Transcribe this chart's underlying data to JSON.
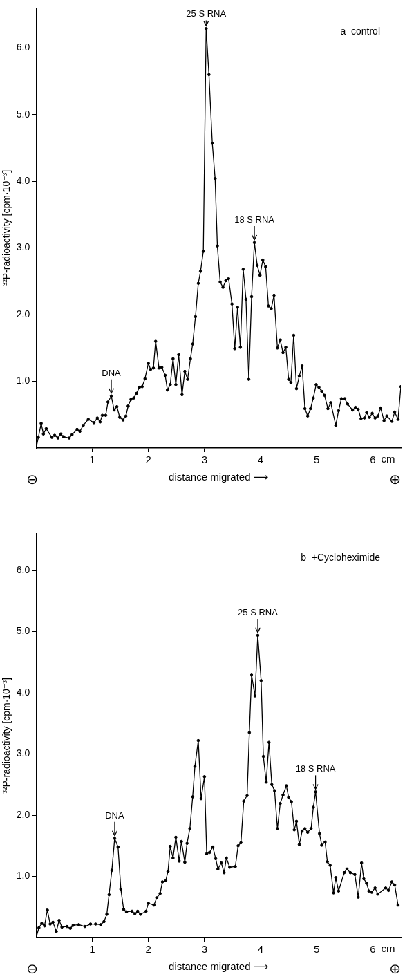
{
  "chart_data": [
    {
      "type": "line",
      "title": "a  control",
      "xlabel": "distance migrated ⟶",
      "ylabel": "³²P-radioactivity [cpm·10⁻³]",
      "x": [
        0,
        0.04,
        0.09,
        0.13,
        0.18,
        0.28,
        0.33,
        0.39,
        0.44,
        0.49,
        0.59,
        0.64,
        0.73,
        0.78,
        0.84,
        0.93,
        1.03,
        1.09,
        1.14,
        1.18,
        1.24,
        1.28,
        1.34,
        1.39,
        1.44,
        1.49,
        1.55,
        1.6,
        1.64,
        1.69,
        1.74,
        1.79,
        1.84,
        1.89,
        1.94,
        2.0,
        2.04,
        2.09,
        2.13,
        2.19,
        2.24,
        2.3,
        2.34,
        2.39,
        2.44,
        2.49,
        2.54,
        2.6,
        2.65,
        2.7,
        2.75,
        2.79,
        2.84,
        2.89,
        2.93,
        2.98,
        3.03,
        3.08,
        3.14,
        3.19,
        3.23,
        3.28,
        3.33,
        3.38,
        3.43,
        3.49,
        3.54,
        3.59,
        3.64,
        3.69,
        3.74,
        3.79,
        3.84,
        3.89,
        3.94,
        3.99,
        4.04,
        4.09,
        4.14,
        4.19,
        4.24,
        4.3,
        4.35,
        4.4,
        4.45,
        4.5,
        4.54,
        4.59,
        4.64,
        4.69,
        4.74,
        4.79,
        4.84,
        4.89,
        4.94,
        4.99,
        5.04,
        5.09,
        5.14,
        5.2,
        5.25,
        5.34,
        5.39,
        5.44,
        5.5,
        5.55,
        5.64,
        5.69,
        5.74,
        5.79,
        5.85,
        5.89,
        5.94,
        5.99,
        6.04,
        6.09,
        6.14,
        6.2,
        6.25,
        6.34,
        6.39,
        6.45,
        6.5
      ],
      "values": [
        0,
        0.16,
        0.37,
        0.21,
        0.29,
        0.16,
        0.19,
        0.15,
        0.21,
        0.17,
        0.15,
        0.2,
        0.28,
        0.25,
        0.34,
        0.43,
        0.38,
        0.45,
        0.39,
        0.49,
        0.49,
        0.69,
        0.78,
        0.57,
        0.62,
        0.46,
        0.42,
        0.48,
        0.63,
        0.73,
        0.75,
        0.82,
        0.91,
        0.92,
        1.04,
        1.27,
        1.18,
        1.2,
        1.6,
        1.2,
        1.21,
        1.09,
        0.87,
        0.95,
        1.34,
        0.95,
        1.4,
        0.8,
        1.15,
        1.03,
        1.34,
        1.56,
        1.97,
        2.47,
        2.65,
        2.95,
        6.29,
        5.6,
        4.57,
        4.04,
        3.03,
        2.49,
        2.41,
        2.51,
        2.54,
        2.16,
        1.49,
        2.11,
        1.51,
        2.68,
        2.23,
        1.03,
        2.27,
        3.08,
        2.74,
        2.59,
        2.82,
        2.72,
        2.13,
        2.09,
        2.29,
        1.5,
        1.62,
        1.43,
        1.51,
        1.03,
        0.98,
        1.69,
        0.89,
        1.08,
        1.23,
        0.59,
        0.48,
        0.59,
        0.75,
        0.95,
        0.91,
        0.85,
        0.79,
        0.59,
        0.68,
        0.34,
        0.56,
        0.74,
        0.74,
        0.66,
        0.57,
        0.61,
        0.58,
        0.44,
        0.45,
        0.53,
        0.46,
        0.52,
        0.45,
        0.48,
        0.6,
        0.41,
        0.48,
        0.4,
        0.54,
        0.43,
        0.92
      ],
      "color": "#000000",
      "marker": "circle",
      "grid": false,
      "legend": false,
      "xlim": [
        0,
        6.5
      ],
      "ylim": [
        0,
        6.6
      ],
      "xticks": [
        1,
        2,
        3,
        4,
        5,
        6
      ],
      "yticks": [
        {
          "value": 1,
          "label": "1.0"
        },
        {
          "value": 2,
          "label": "2.0"
        },
        {
          "value": 3,
          "label": "3.0"
        },
        {
          "value": 4,
          "label": "4.0"
        },
        {
          "value": 5,
          "label": "5.0"
        },
        {
          "value": 6,
          "label": "6.0"
        }
      ],
      "annotations": [
        {
          "text": "25 S RNA",
          "x": 3.03,
          "y": 6.29
        },
        {
          "text": "18 S RNA",
          "x": 3.89,
          "y": 3.08
        },
        {
          "text": "DNA",
          "x": 1.34,
          "y": 0.78
        },
        "cm",
        "⊖",
        "⊕"
      ]
    },
    {
      "type": "line",
      "title": "b  +Cycloheximide",
      "xlabel": "distance migrated ⟶",
      "ylabel": "³²P-radioactivity [cpm·10⁻³]",
      "x": [
        0,
        0.05,
        0.1,
        0.15,
        0.2,
        0.25,
        0.3,
        0.36,
        0.41,
        0.46,
        0.55,
        0.61,
        0.66,
        0.76,
        0.87,
        0.97,
        1.06,
        1.15,
        1.21,
        1.26,
        1.3,
        1.35,
        1.4,
        1.46,
        1.51,
        1.56,
        1.61,
        1.71,
        1.76,
        1.81,
        1.86,
        1.96,
        2.0,
        2.1,
        2.15,
        2.21,
        2.25,
        2.31,
        2.35,
        2.39,
        2.44,
        2.49,
        2.55,
        2.59,
        2.65,
        2.69,
        2.74,
        2.79,
        2.83,
        2.89,
        2.94,
        3.0,
        3.04,
        3.09,
        3.15,
        3.2,
        3.24,
        3.3,
        3.35,
        3.39,
        3.45,
        3.55,
        3.6,
        3.65,
        3.7,
        3.76,
        3.8,
        3.84,
        3.9,
        3.95,
        4.01,
        4.05,
        4.1,
        4.15,
        4.2,
        4.25,
        4.3,
        4.35,
        4.4,
        4.46,
        4.5,
        4.55,
        4.6,
        4.64,
        4.69,
        4.74,
        4.79,
        4.84,
        4.9,
        4.94,
        4.98,
        5.05,
        5.09,
        5.15,
        5.19,
        5.24,
        5.3,
        5.34,
        5.39,
        5.49,
        5.54,
        5.6,
        5.68,
        5.74,
        5.8,
        5.84,
        5.89,
        5.93,
        5.98,
        6.04,
        6.09,
        6.23,
        6.28,
        6.34,
        6.39,
        6.45
      ],
      "values": [
        0,
        0.16,
        0.23,
        0.19,
        0.45,
        0.22,
        0.25,
        0.1,
        0.28,
        0.17,
        0.18,
        0.15,
        0.2,
        0.21,
        0.18,
        0.22,
        0.22,
        0.21,
        0.26,
        0.38,
        0.7,
        1.1,
        1.62,
        1.48,
        0.79,
        0.46,
        0.42,
        0.43,
        0.39,
        0.43,
        0.38,
        0.43,
        0.56,
        0.53,
        0.65,
        0.72,
        0.91,
        0.93,
        1.08,
        1.49,
        1.3,
        1.64,
        1.25,
        1.57,
        1.23,
        1.54,
        1.78,
        2.3,
        2.8,
        3.22,
        2.27,
        2.63,
        1.37,
        1.39,
        1.48,
        1.29,
        1.12,
        1.22,
        1.06,
        1.3,
        1.15,
        1.16,
        1.5,
        1.55,
        2.23,
        2.32,
        3.35,
        4.29,
        3.95,
        4.94,
        4.2,
        2.96,
        2.54,
        3.19,
        2.5,
        2.4,
        1.78,
        2.19,
        2.33,
        2.48,
        2.29,
        2.22,
        1.76,
        1.9,
        1.52,
        1.74,
        1.78,
        1.72,
        1.78,
        2.13,
        2.38,
        1.7,
        1.51,
        1.56,
        1.24,
        1.18,
        0.73,
        0.98,
        0.76,
        1.06,
        1.12,
        1.06,
        1.03,
        0.66,
        1.22,
        0.96,
        0.89,
        0.76,
        0.74,
        0.81,
        0.71,
        0.81,
        0.77,
        0.91,
        0.86,
        0.53
      ],
      "color": "#000000",
      "marker": "circle",
      "grid": false,
      "legend": false,
      "xlim": [
        0,
        6.5
      ],
      "ylim": [
        0,
        6.6
      ],
      "xticks": [
        1,
        2,
        3,
        4,
        5,
        6
      ],
      "yticks": [
        {
          "value": 1,
          "label": "1.0"
        },
        {
          "value": 2,
          "label": "2.0"
        },
        {
          "value": 3,
          "label": "3.0"
        },
        {
          "value": 4,
          "label": "4.0"
        },
        {
          "value": 5,
          "label": "5.0"
        },
        {
          "value": 6,
          "label": "6.0"
        }
      ],
      "annotations": [
        {
          "text": "25 S RNA",
          "x": 3.95,
          "y": 4.94
        },
        {
          "text": "18 S RNA",
          "x": 4.98,
          "y": 2.38
        },
        {
          "text": "DNA",
          "x": 1.4,
          "y": 1.62
        },
        "cm",
        "⊖",
        "⊕"
      ]
    }
  ]
}
